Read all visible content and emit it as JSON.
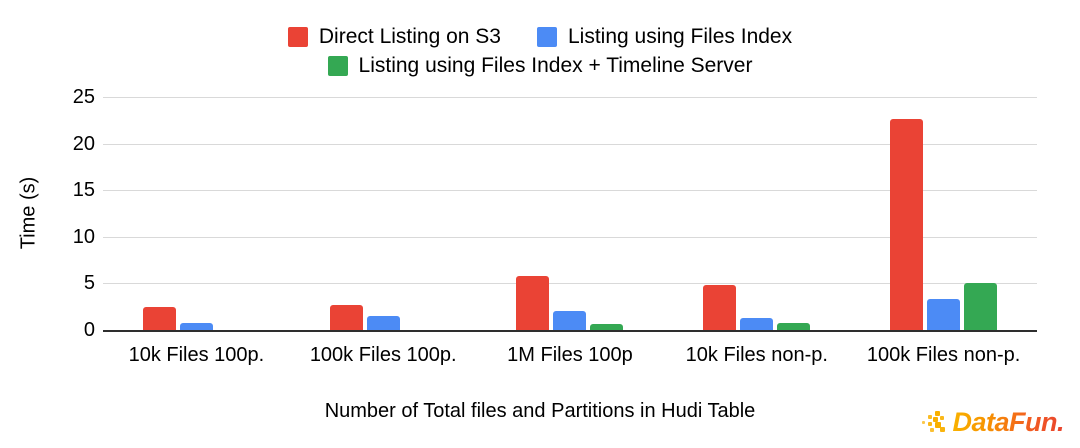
{
  "chart_data": {
    "type": "bar",
    "title": "",
    "categories": [
      "10k Files 100p.",
      "100k Files 100p.",
      "1M Files 100p",
      "10k Files non-p.",
      "100k Files non-p."
    ],
    "series": [
      {
        "name": "Direct Listing on S3",
        "color": "#ea4335",
        "values": [
          2.5,
          2.7,
          5.8,
          4.8,
          22.6
        ]
      },
      {
        "name": "Listing using Files Index",
        "color": "#4c8bf5",
        "values": [
          0.8,
          1.5,
          2.0,
          1.3,
          3.3
        ]
      },
      {
        "name": "Listing using Files Index + Timeline Server",
        "color": "#34a853",
        "values": [
          0,
          0,
          0.6,
          0.7,
          5.0
        ]
      }
    ],
    "xlabel": "Number of Total files and Partitions in Hudi Table",
    "ylabel": "Time (s)",
    "yticks": [
      0,
      5,
      10,
      15,
      20,
      25
    ],
    "ylim": [
      0,
      25
    ],
    "grid": true,
    "legend_position": "top",
    "axis_colors": {
      "gridline": "#d9d9d9",
      "baseline": "#2e2e2e",
      "text": "#000000"
    }
  },
  "branding": {
    "logo_text": "DataFun."
  }
}
